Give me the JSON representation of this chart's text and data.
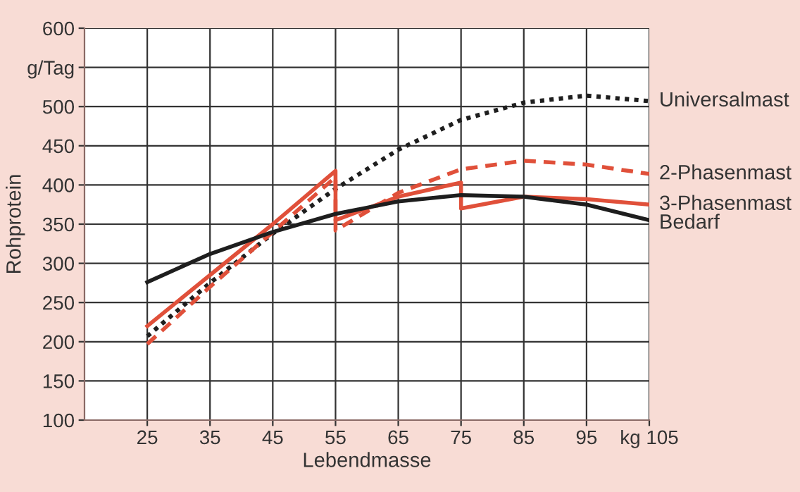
{
  "chart_data": {
    "type": "line",
    "xlabel": "Lebendmasse",
    "ylabel": "Rohprotein",
    "xlim": [
      15,
      105
    ],
    "ylim": [
      100,
      600
    ],
    "xticks": [
      25,
      35,
      45,
      55,
      65,
      75,
      85,
      95,
      {
        "value": 105,
        "label": "kg 105"
      }
    ],
    "yticks": [
      100,
      150,
      200,
      250,
      300,
      350,
      400,
      450,
      500,
      {
        "value": 550,
        "label": "g/Tag"
      },
      600
    ],
    "grid": true,
    "legend": false,
    "series": [
      {
        "name": "Universalmast",
        "color": "#1e1e1e",
        "line_style": "dotted",
        "x": [
          25,
          35,
          45,
          55,
          65,
          75,
          85,
          95,
          105
        ],
        "values": [
          207,
          275,
          338,
          395,
          445,
          483,
          505,
          514,
          507
        ]
      },
      {
        "name": "2-Phasenmast",
        "color": "#e0503a",
        "line_style": "dashed",
        "x": [
          25,
          35,
          45,
          55,
          55,
          65,
          75,
          85,
          95,
          105
        ],
        "values": [
          197,
          270,
          340,
          410,
          342,
          390,
          420,
          431,
          426,
          414
        ]
      },
      {
        "name": "3-Phasenmast",
        "color": "#e0503a",
        "line_style": "solid",
        "x": [
          25,
          35,
          45,
          55,
          55,
          65,
          75,
          75,
          85,
          95,
          105
        ],
        "values": [
          220,
          285,
          350,
          418,
          355,
          385,
          403,
          370,
          385,
          382,
          375
        ]
      },
      {
        "name": "Bedarf",
        "color": "#1e1e1e",
        "line_style": "solid",
        "x": [
          25,
          35,
          45,
          55,
          65,
          75,
          85,
          95,
          105
        ],
        "values": [
          276,
          312,
          340,
          363,
          379,
          387,
          385,
          375,
          355
        ]
      }
    ]
  }
}
